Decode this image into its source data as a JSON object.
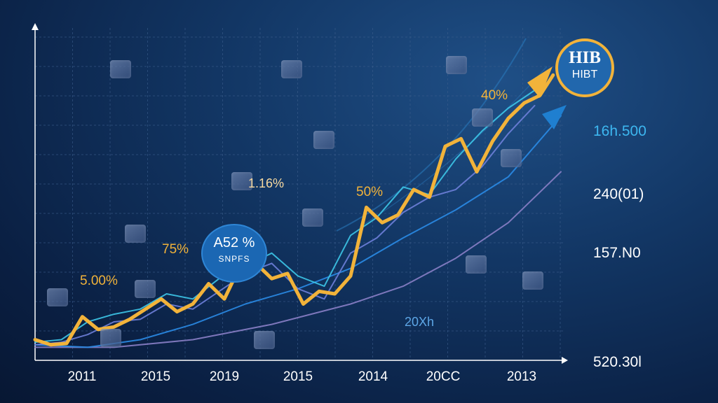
{
  "chart_data": {
    "type": "line",
    "x_tick_labels": [
      "2011",
      "2015",
      "2019",
      "2015",
      "2014",
      "20CC",
      "2013"
    ],
    "y_tick_labels": [
      "16h.500",
      "240(01)",
      "157.N0",
      "520.30l"
    ],
    "series": [
      {
        "color": "#f2b33a",
        "x": [
          0,
          0.03,
          0.06,
          0.09,
          0.12,
          0.15,
          0.18,
          0.21,
          0.24,
          0.27,
          0.3,
          0.33,
          0.36,
          0.39,
          0.42,
          0.45,
          0.48,
          0.51,
          0.54,
          0.57,
          0.6,
          0.63,
          0.66,
          0.69,
          0.72,
          0.75,
          0.78,
          0.81,
          0.84,
          0.87,
          0.9,
          0.93,
          0.96,
          0.985
        ],
        "y": [
          4,
          2,
          2.5,
          13,
          8,
          9,
          12,
          16,
          20,
          15,
          18,
          26,
          20,
          33,
          34,
          28,
          30,
          18,
          23,
          22,
          29,
          56,
          50,
          53,
          63,
          60,
          80,
          83,
          70,
          82,
          91,
          97,
          100,
          108
        ]
      },
      {
        "color": "#3dc7e8",
        "x": [
          0,
          0.05,
          0.1,
          0.15,
          0.2,
          0.25,
          0.3,
          0.35,
          0.4,
          0.45,
          0.5,
          0.55,
          0.6,
          0.65,
          0.7,
          0.75,
          0.8,
          0.85,
          0.9,
          0.95
        ],
        "y": [
          3,
          4,
          11,
          14,
          16,
          22,
          20,
          28,
          33,
          38,
          29,
          25,
          45,
          52,
          64,
          61,
          75,
          86,
          95,
          102
        ]
      },
      {
        "color": "#6e7fd9",
        "x": [
          0,
          0.05,
          0.1,
          0.15,
          0.2,
          0.25,
          0.3,
          0.35,
          0.4,
          0.45,
          0.5,
          0.55,
          0.6,
          0.65,
          0.7,
          0.75,
          0.8,
          0.85,
          0.9,
          0.95
        ],
        "y": [
          2,
          3,
          6,
          11,
          12,
          18,
          16,
          23,
          30,
          34,
          24,
          20,
          38,
          44,
          54,
          60,
          63,
          72,
          85,
          96
        ]
      },
      {
        "color": "#2a8be6",
        "x": [
          0,
          0.1,
          0.2,
          0.3,
          0.4,
          0.5,
          0.6,
          0.7,
          0.8,
          0.9,
          1.0
        ],
        "y": [
          2,
          1,
          4,
          10,
          18,
          24,
          32,
          44,
          55,
          68,
          92
        ]
      },
      {
        "color": "#8a80c7",
        "x": [
          0,
          0.15,
          0.3,
          0.45,
          0.6,
          0.7,
          0.8,
          0.9,
          1.0
        ],
        "y": [
          1,
          1,
          4,
          10,
          18,
          25,
          36,
          50,
          70
        ]
      }
    ],
    "annotations": [
      "40%",
      "1.16%",
      "50%",
      "75%",
      "5.00%",
      "20Xh"
    ],
    "badge": {
      "line1": "A52 %",
      "line2": "SNPFS"
    },
    "logo": {
      "line1": "HIB",
      "line2": "HIBT"
    },
    "colors": {
      "accent": "#f2b33a",
      "background": "#0b2347",
      "grid": "#3b5d8c"
    },
    "grid": true
  }
}
